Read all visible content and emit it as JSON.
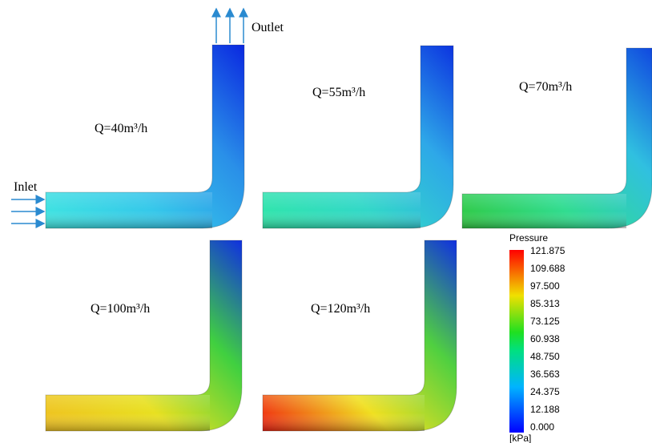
{
  "annotations": {
    "inlet": "Inlet",
    "outlet": "Outlet"
  },
  "panels": [
    {
      "label": "Q=40m³/h",
      "colors": [
        "#40e6e0",
        "#35c8ea",
        "#2a90e8",
        "#0a28e0"
      ]
    },
    {
      "label": "Q=55m³/h",
      "colors": [
        "#30e6a8",
        "#32d8c8",
        "#2ea8e8",
        "#0c34e0"
      ]
    },
    {
      "label": "Q=70m³/h",
      "colors": [
        "#30c840",
        "#30dc90",
        "#30c0e0",
        "#1048e0"
      ]
    },
    {
      "label": "Q=100m³/h",
      "colors": [
        "#f0c020",
        "#e8e020",
        "#40d040",
        "#1030e0"
      ]
    },
    {
      "label": "Q=120m³/h",
      "colors": [
        "#f02010",
        "#f0e020",
        "#50d040",
        "#1030e0"
      ]
    }
  ],
  "legend": {
    "title": "Pressure",
    "ticks": [
      "121.875",
      "109.688",
      "97.500",
      "85.313",
      "73.125",
      "60.938",
      "48.750",
      "36.563",
      "24.375",
      "12.188",
      "0.000"
    ],
    "unit": "[kPa]"
  }
}
